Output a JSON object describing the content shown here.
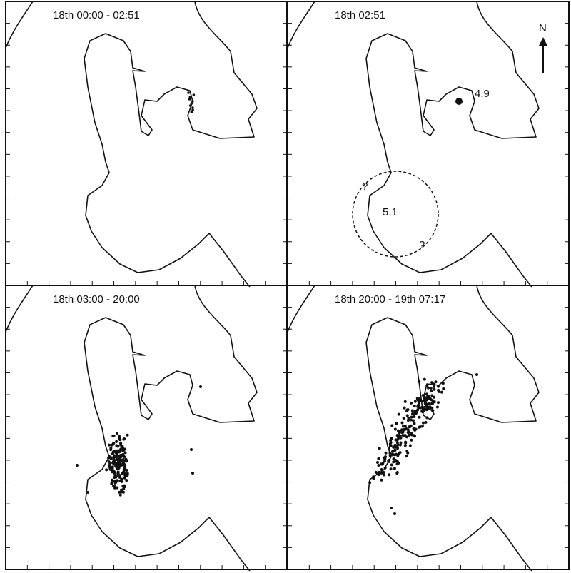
{
  "panels": [
    {
      "title": "18th 00:00 - 02:51"
    },
    {
      "title": "18th 02:51",
      "labels": [
        "4.9",
        "5.1",
        "?",
        "?"
      ],
      "north": "N"
    },
    {
      "title": "18th 03:00 - 20:00"
    },
    {
      "title": "18th 20:00 - 19th 07:17"
    }
  ]
}
